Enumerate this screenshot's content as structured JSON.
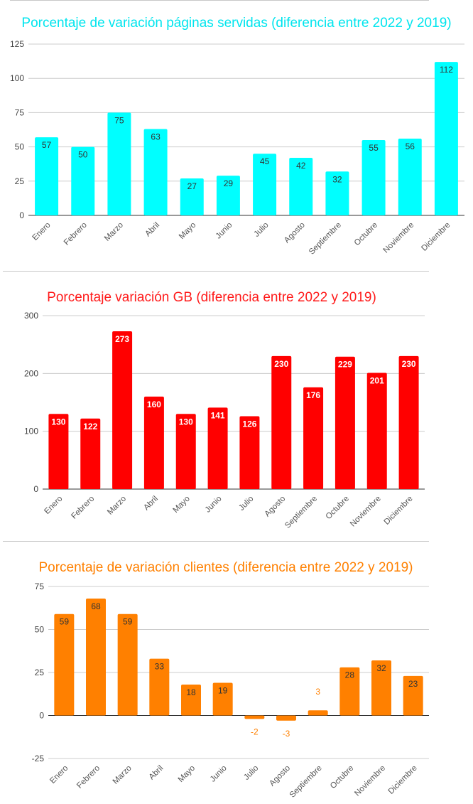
{
  "chart_data": [
    {
      "type": "bar",
      "title": "Porcentaje de variación páginas servidas (diferencia entre 2022 y 2019)",
      "categories": [
        "Enero",
        "Febrero",
        "Marzo",
        "Abril",
        "Mayo",
        "Junio",
        "Julio",
        "Agosto",
        "Septiembre",
        "Octubre",
        "Noviembre",
        "Diciembre"
      ],
      "values": [
        57,
        50,
        75,
        63,
        27,
        29,
        45,
        42,
        32,
        55,
        56,
        112
      ],
      "ylim": [
        0,
        125
      ],
      "yticks": [
        0,
        25,
        50,
        75,
        100,
        125
      ],
      "xlabel": "",
      "ylabel": "",
      "grid": true,
      "legend": "none",
      "colors": {
        "bar": "#00ffff",
        "value_label": "#333333",
        "title": "#00e5ee"
      }
    },
    {
      "type": "bar",
      "title": "Porcentaje variación GB (diferencia entre 2022 y 2019)",
      "categories": [
        "Enero",
        "Febrero",
        "Marzo",
        "Abril",
        "Mayo",
        "Junio",
        "Julio",
        "Agosto",
        "Septiembre",
        "Octubre",
        "Noviembre",
        "Diciembre"
      ],
      "values": [
        130,
        122,
        273,
        160,
        130,
        141,
        126,
        230,
        176,
        229,
        201,
        230
      ],
      "ylim": [
        0,
        300
      ],
      "yticks": [
        0,
        100,
        200,
        300
      ],
      "xlabel": "",
      "ylabel": "",
      "grid": true,
      "legend": "none",
      "colors": {
        "bar": "#ff0000",
        "value_label": "#ffffff",
        "title": "#ff1a1a"
      }
    },
    {
      "type": "bar",
      "title": "Porcentaje de variación clientes (diferencia entre 2022 y 2019)",
      "categories": [
        "Enero",
        "Febrero",
        "Marzo",
        "Abril",
        "Mayo",
        "Junio",
        "Julio",
        "Agosto",
        "Septiembre",
        "Octubre",
        "Noviembre",
        "Diciembre"
      ],
      "values": [
        59,
        68,
        59,
        33,
        18,
        19,
        -2,
        -3,
        3,
        28,
        32,
        23
      ],
      "ylim": [
        -25,
        75
      ],
      "yticks": [
        -25,
        0,
        25,
        50,
        75
      ],
      "xlabel": "",
      "ylabel": "",
      "grid": true,
      "legend": "none",
      "colors": {
        "bar": "#ff8000",
        "value_label": "#333333",
        "value_label_outside": "#ff8000",
        "title": "#ff8000"
      }
    }
  ]
}
